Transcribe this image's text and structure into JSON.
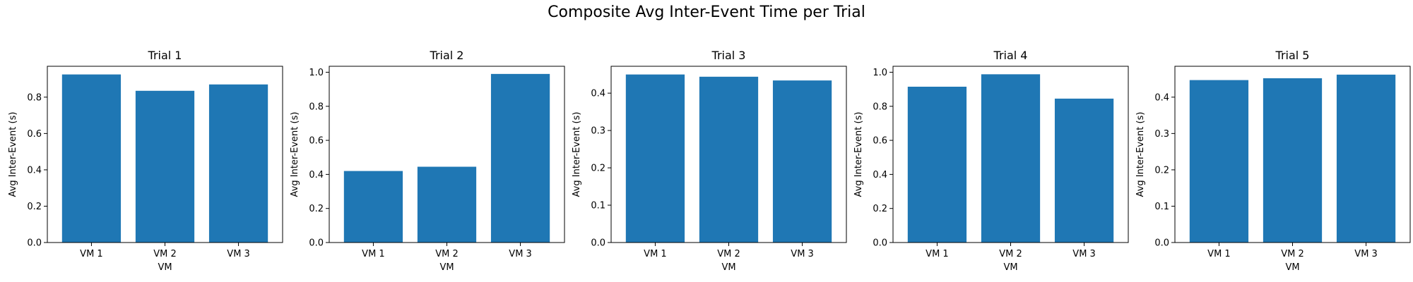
{
  "figure": {
    "title": "Composite Avg Inter-Event Time per Trial"
  },
  "colors": {
    "bar": "#1f77b4",
    "axis": "#000000"
  },
  "chart_data": [
    {
      "type": "bar",
      "title": "Trial 1",
      "xlabel": "VM",
      "ylabel": "Avg Inter-Event (s)",
      "categories": [
        "VM 1",
        "VM 2",
        "VM 3"
      ],
      "values": [
        0.925,
        0.835,
        0.87
      ],
      "ylim": [
        0,
        0.97
      ],
      "yticks": [
        0.0,
        0.2,
        0.4,
        0.6,
        0.8
      ],
      "ytick_labels": [
        "0.0",
        "0.2",
        "0.4",
        "0.6",
        "0.8"
      ],
      "grid": false,
      "legend": null
    },
    {
      "type": "bar",
      "title": "Trial 2",
      "xlabel": "VM",
      "ylabel": "Avg Inter-Event (s)",
      "categories": [
        "VM 1",
        "VM 2",
        "VM 3"
      ],
      "values": [
        0.42,
        0.445,
        0.99
      ],
      "ylim": [
        0,
        1.035
      ],
      "yticks": [
        0.0,
        0.2,
        0.4,
        0.6,
        0.8,
        1.0
      ],
      "ytick_labels": [
        "0.0",
        "0.2",
        "0.4",
        "0.6",
        "0.8",
        "1.0"
      ],
      "grid": false,
      "legend": null
    },
    {
      "type": "bar",
      "title": "Trial 3",
      "xlabel": "VM",
      "ylabel": "Avg Inter-Event (s)",
      "categories": [
        "VM 1",
        "VM 2",
        "VM 3"
      ],
      "values": [
        0.45,
        0.444,
        0.434
      ],
      "ylim": [
        0,
        0.472
      ],
      "yticks": [
        0.0,
        0.1,
        0.2,
        0.3,
        0.4
      ],
      "ytick_labels": [
        "0.0",
        "0.1",
        "0.2",
        "0.3",
        "0.4"
      ],
      "grid": false,
      "legend": null
    },
    {
      "type": "bar",
      "title": "Trial 4",
      "xlabel": "VM",
      "ylabel": "Avg Inter-Event (s)",
      "categories": [
        "VM 1",
        "VM 2",
        "VM 3"
      ],
      "values": [
        0.915,
        0.988,
        0.845
      ],
      "ylim": [
        0,
        1.035
      ],
      "yticks": [
        0.0,
        0.2,
        0.4,
        0.6,
        0.8,
        1.0
      ],
      "ytick_labels": [
        "0.0",
        "0.2",
        "0.4",
        "0.6",
        "0.8",
        "1.0"
      ],
      "grid": false,
      "legend": null
    },
    {
      "type": "bar",
      "title": "Trial 5",
      "xlabel": "VM",
      "ylabel": "Avg Inter-Event (s)",
      "categories": [
        "VM 1",
        "VM 2",
        "VM 3"
      ],
      "values": [
        0.447,
        0.452,
        0.462
      ],
      "ylim": [
        0,
        0.485
      ],
      "yticks": [
        0.0,
        0.1,
        0.2,
        0.3,
        0.4
      ],
      "ytick_labels": [
        "0.0",
        "0.1",
        "0.2",
        "0.3",
        "0.4"
      ],
      "grid": false,
      "legend": null
    }
  ]
}
